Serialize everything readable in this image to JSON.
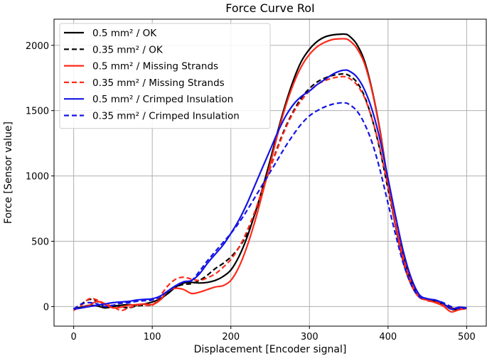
{
  "chart_data": {
    "type": "line",
    "title": "Force Curve RoI",
    "xlabel": "Displacement [Encoder signal]",
    "ylabel": "Force [Sensor value]",
    "xlim": [
      -25,
      525
    ],
    "ylim": [
      -150,
      2200
    ],
    "xticks": [
      0,
      100,
      200,
      300,
      400,
      500
    ],
    "yticks": [
      0,
      500,
      1000,
      1500,
      2000
    ],
    "grid": true,
    "legend_position": "top-left",
    "series": [
      {
        "name": "0.5 mm² / OK",
        "color": "#000000",
        "dash": "solid",
        "x": [
          0,
          10,
          20,
          30,
          40,
          50,
          60,
          70,
          80,
          90,
          100,
          110,
          120,
          130,
          140,
          150,
          160,
          170,
          180,
          190,
          200,
          210,
          220,
          230,
          240,
          250,
          260,
          270,
          280,
          290,
          300,
          310,
          320,
          330,
          340,
          345,
          350,
          360,
          370,
          380,
          390,
          400,
          410,
          420,
          430,
          440,
          450,
          460,
          470,
          480,
          490,
          500
        ],
        "y": [
          -15,
          -5,
          10,
          5,
          -10,
          0,
          10,
          15,
          10,
          20,
          35,
          60,
          100,
          150,
          180,
          185,
          180,
          185,
          200,
          230,
          280,
          380,
          520,
          700,
          900,
          1120,
          1350,
          1560,
          1740,
          1880,
          1970,
          2030,
          2065,
          2080,
          2085,
          2085,
          2075,
          2010,
          1880,
          1650,
          1340,
          950,
          600,
          330,
          160,
          70,
          50,
          40,
          20,
          -10,
          -15,
          -10
        ]
      },
      {
        "name": "0.35 mm² / OK",
        "color": "#000000",
        "dash": "dashed",
        "x": [
          0,
          10,
          20,
          30,
          40,
          50,
          60,
          70,
          80,
          90,
          100,
          110,
          120,
          130,
          140,
          150,
          160,
          170,
          180,
          190,
          200,
          210,
          220,
          230,
          240,
          250,
          260,
          270,
          280,
          290,
          300,
          310,
          320,
          330,
          340,
          345,
          350,
          360,
          370,
          380,
          390,
          400,
          410,
          420,
          430,
          440,
          450,
          460,
          470,
          480,
          490,
          500
        ],
        "y": [
          -20,
          20,
          55,
          40,
          -5,
          10,
          0,
          -10,
          5,
          10,
          15,
          50,
          110,
          150,
          170,
          175,
          200,
          240,
          290,
          330,
          380,
          450,
          550,
          700,
          880,
          1060,
          1230,
          1380,
          1500,
          1600,
          1670,
          1720,
          1750,
          1770,
          1780,
          1780,
          1770,
          1720,
          1610,
          1430,
          1190,
          900,
          610,
          370,
          190,
          85,
          50,
          45,
          20,
          -20,
          -20,
          -15
        ]
      },
      {
        "name": "0.5 mm² / Missing Strands",
        "color": "#ff2a1a",
        "dash": "solid",
        "x": [
          0,
          10,
          20,
          30,
          40,
          50,
          60,
          70,
          80,
          90,
          100,
          110,
          120,
          130,
          140,
          150,
          160,
          170,
          180,
          190,
          200,
          210,
          220,
          230,
          240,
          250,
          260,
          270,
          280,
          290,
          300,
          310,
          320,
          330,
          340,
          345,
          350,
          360,
          370,
          380,
          390,
          400,
          410,
          420,
          430,
          440,
          450,
          460,
          470,
          480,
          490,
          500
        ],
        "y": [
          -20,
          -10,
          10,
          40,
          15,
          -10,
          -5,
          10,
          15,
          20,
          15,
          50,
          120,
          140,
          130,
          100,
          110,
          130,
          150,
          160,
          200,
          300,
          450,
          640,
          860,
          1090,
          1330,
          1540,
          1710,
          1840,
          1930,
          1990,
          2025,
          2045,
          2050,
          2050,
          2040,
          1980,
          1860,
          1640,
          1330,
          950,
          610,
          340,
          160,
          70,
          50,
          30,
          5,
          -40,
          -25,
          -15
        ]
      },
      {
        "name": "0.35 mm² / Missing Strands",
        "color": "#ff2a1a",
        "dash": "dashed",
        "x": [
          0,
          10,
          20,
          30,
          40,
          50,
          60,
          70,
          80,
          90,
          100,
          110,
          120,
          130,
          140,
          150,
          160,
          170,
          180,
          190,
          200,
          210,
          220,
          230,
          240,
          250,
          260,
          270,
          280,
          290,
          300,
          310,
          320,
          330,
          340,
          345,
          350,
          360,
          370,
          380,
          390,
          400,
          410,
          420,
          430,
          440,
          450,
          460,
          470,
          480,
          490,
          500
        ],
        "y": [
          -30,
          10,
          60,
          50,
          20,
          0,
          -30,
          -10,
          10,
          15,
          10,
          80,
          160,
          210,
          225,
          210,
          200,
          220,
          250,
          300,
          360,
          450,
          570,
          720,
          890,
          1060,
          1220,
          1370,
          1490,
          1580,
          1650,
          1700,
          1730,
          1750,
          1760,
          1760,
          1750,
          1700,
          1600,
          1430,
          1200,
          920,
          630,
          380,
          190,
          80,
          45,
          35,
          15,
          -15,
          -15,
          -10
        ]
      },
      {
        "name": "0.5 mm² / Crimped Insulation",
        "color": "#1414e6",
        "dash": "solid",
        "x": [
          0,
          10,
          20,
          30,
          40,
          50,
          60,
          70,
          80,
          90,
          100,
          110,
          120,
          130,
          140,
          150,
          160,
          170,
          180,
          190,
          200,
          210,
          220,
          230,
          240,
          250,
          260,
          270,
          280,
          290,
          300,
          310,
          320,
          330,
          340,
          345,
          350,
          360,
          370,
          380,
          390,
          400,
          410,
          420,
          430,
          440,
          450,
          460,
          470,
          480,
          490,
          500
        ],
        "y": [
          -20,
          -10,
          0,
          10,
          20,
          30,
          35,
          40,
          50,
          55,
          60,
          80,
          120,
          160,
          190,
          200,
          250,
          330,
          400,
          470,
          560,
          660,
          780,
          920,
          1060,
          1200,
          1340,
          1460,
          1550,
          1610,
          1650,
          1700,
          1740,
          1780,
          1805,
          1810,
          1805,
          1760,
          1660,
          1500,
          1270,
          980,
          680,
          410,
          210,
          90,
          60,
          50,
          25,
          -20,
          -5,
          -10
        ]
      },
      {
        "name": "0.35 mm² / Crimped Insulation",
        "color": "#1414e6",
        "dash": "dashed",
        "x": [
          0,
          10,
          20,
          30,
          40,
          50,
          60,
          70,
          80,
          90,
          100,
          110,
          120,
          130,
          140,
          150,
          160,
          170,
          180,
          190,
          200,
          210,
          220,
          230,
          240,
          250,
          260,
          270,
          280,
          290,
          300,
          310,
          320,
          330,
          340,
          345,
          350,
          360,
          370,
          380,
          390,
          400,
          410,
          420,
          430,
          440,
          450,
          460,
          470,
          480,
          490,
          500
        ],
        "y": [
          -20,
          20,
          30,
          20,
          0,
          10,
          25,
          30,
          40,
          45,
          50,
          75,
          120,
          160,
          190,
          200,
          270,
          350,
          420,
          490,
          560,
          640,
          730,
          830,
          930,
          1030,
          1130,
          1230,
          1320,
          1400,
          1460,
          1500,
          1530,
          1550,
          1560,
          1560,
          1550,
          1500,
          1400,
          1250,
          1040,
          790,
          540,
          320,
          160,
          75,
          60,
          50,
          30,
          0,
          -15,
          -10
        ]
      }
    ]
  }
}
